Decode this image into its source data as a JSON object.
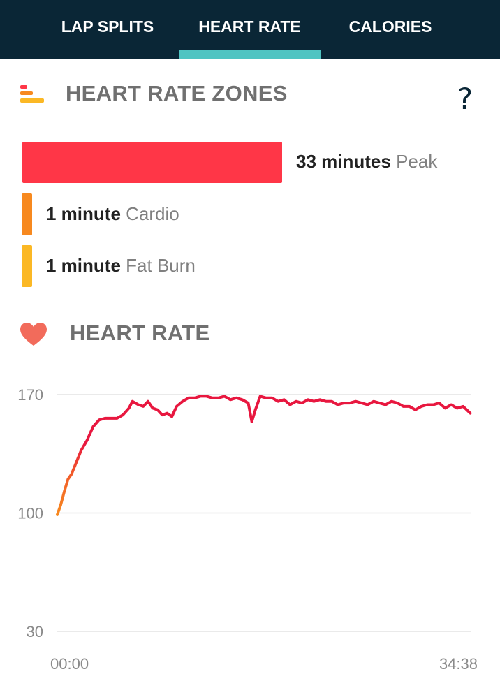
{
  "tabs": [
    {
      "label": "LAP SPLITS",
      "active": false
    },
    {
      "label": "HEART RATE",
      "active": true
    },
    {
      "label": "CALORIES",
      "active": false
    }
  ],
  "colors": {
    "header_bg": "#0a2636",
    "tab_indicator": "#4fc4c2",
    "peak": "#ff3647",
    "cardio": "#f7891f",
    "fat_burn": "#fbb825",
    "heart_icon": "#f26b5b",
    "line": "#e8173f"
  },
  "zones_section": {
    "title": "HEART RATE ZONES",
    "icon": "zones-icon",
    "help_icon": "question-mark-icon",
    "help_text": "?",
    "zones": [
      {
        "value": "33 minutes",
        "name": "Peak",
        "minutes": 33
      },
      {
        "value": "1 minute",
        "name": "Cardio",
        "minutes": 1
      },
      {
        "value": "1 minute",
        "name": "Fat Burn",
        "minutes": 1
      }
    ]
  },
  "hr_section": {
    "title": "HEART RATE",
    "icon": "heart-icon"
  },
  "chart_data": {
    "type": "line",
    "title": "",
    "xlabel": "",
    "ylabel": "",
    "ylim": [
      30,
      170
    ],
    "yticks": [
      "170",
      "100",
      "30"
    ],
    "xticks": [
      "00:00",
      "34:38"
    ],
    "grid": true,
    "x_start_label": "00:00",
    "x_end_label": "34:38",
    "x_minutes": [
      0,
      0.3,
      0.6,
      0.9,
      1.2,
      1.6,
      2.0,
      2.5,
      3.0,
      3.5,
      4.0,
      4.5,
      5.0,
      5.5,
      6.0,
      6.3,
      6.8,
      7.2,
      7.6,
      8.0,
      8.4,
      8.8,
      9.2,
      9.6,
      10.0,
      10.5,
      11.0,
      11.5,
      12.0,
      12.5,
      13.0,
      13.5,
      14.0,
      14.5,
      15.0,
      15.5,
      16.0,
      16.3,
      16.6,
      17.0,
      17.5,
      18.0,
      18.5,
      19.0,
      19.5,
      20.0,
      20.5,
      21.0,
      21.5,
      22.0,
      22.5,
      23.0,
      23.5,
      24.0,
      24.5,
      25.0,
      25.5,
      26.0,
      26.5,
      27.0,
      27.5,
      28.0,
      28.5,
      29.0,
      29.5,
      30.0,
      30.5,
      31.0,
      31.5,
      32.0,
      32.5,
      33.0,
      33.5,
      34.0,
      34.6
    ],
    "values": [
      99,
      105,
      113,
      120,
      123,
      130,
      137,
      143,
      151,
      155,
      156,
      156,
      156,
      158,
      162,
      166,
      164,
      163,
      166,
      162,
      161,
      158,
      159,
      157,
      163,
      166,
      168,
      168,
      169,
      169,
      168,
      168,
      169,
      167,
      168,
      167,
      165,
      154,
      161,
      169,
      168,
      168,
      166,
      167,
      164,
      166,
      165,
      167,
      166,
      167,
      166,
      166,
      164,
      165,
      165,
      166,
      165,
      164,
      166,
      165,
      164,
      166,
      165,
      163,
      163,
      161,
      163,
      164,
      164,
      165,
      162,
      164,
      162,
      163,
      159
    ]
  }
}
